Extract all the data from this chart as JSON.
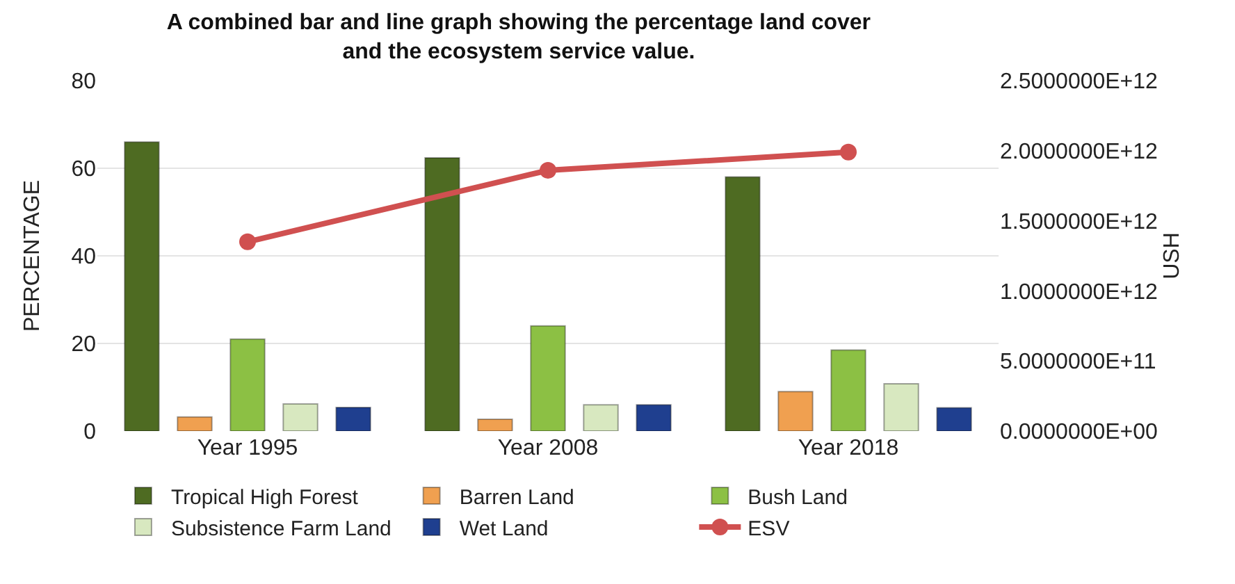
{
  "chart_data": {
    "type": "bar",
    "title": "A combined bar and line graph showing the percentage land cover\nand the ecosystem service value.",
    "categories": [
      "Year 1995",
      "Year 2008",
      "Year 2018"
    ],
    "series": [
      {
        "name": "Tropical High Forest",
        "color": "#4e6b22",
        "values": [
          66,
          62.4,
          58
        ]
      },
      {
        "name": "Barren Land",
        "color": "#f0a050",
        "values": [
          3.2,
          2.7,
          9
        ]
      },
      {
        "name": "Bush Land",
        "color": "#8cc044",
        "values": [
          21,
          24,
          18.5
        ]
      },
      {
        "name": "Subsistence Farm Land",
        "color": "#d8e8c0",
        "values": [
          6.2,
          6,
          10.8
        ]
      },
      {
        "name": "Wet Land",
        "color": "#1f3f8f",
        "values": [
          5.4,
          6,
          5.3
        ]
      },
      {
        "name": "ESV",
        "type": "line",
        "axis": "y2",
        "color": "#d05050",
        "marker": "circle",
        "values": [
          1350000000000,
          1860000000000,
          1990000000000
        ]
      }
    ],
    "ylabel": "PERCENTAGE",
    "y2label": "USH",
    "ylim": [
      0,
      80
    ],
    "yticks": [
      0,
      20,
      40,
      60,
      80
    ],
    "y2lim": [
      0,
      2500000000000
    ],
    "y2ticks": [
      {
        "value": 0,
        "label": "0.0000000E+00"
      },
      {
        "value": 500000000000,
        "label": "5.0000000E+11"
      },
      {
        "value": 1000000000000,
        "label": "1.0000000E+12"
      },
      {
        "value": 1500000000000,
        "label": "1.5000000E+12"
      },
      {
        "value": 2000000000000,
        "label": "2.0000000E+12"
      },
      {
        "value": 2500000000000,
        "label": "2.5000000E+12"
      }
    ],
    "grid": "y",
    "legend": "bottom"
  }
}
